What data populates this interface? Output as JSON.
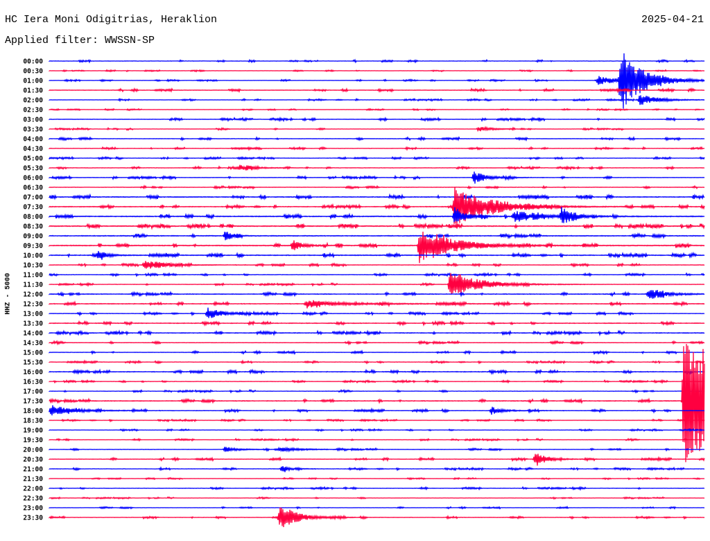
{
  "header": {
    "station": "HC Iera Moni Odigitrias, Heraklion",
    "filter": "Applied filter: WWSSN-SP",
    "date": "2025-04-21"
  },
  "chart_data": {
    "type": "helicorder",
    "ylabel": "HHZ - 5000",
    "minutes_per_row": 30,
    "colors": [
      "#0000ff",
      "#ff0040"
    ],
    "rows": [
      "00:00",
      "00:30",
      "01:00",
      "01:30",
      "02:00",
      "02:30",
      "03:00",
      "03:30",
      "04:00",
      "04:30",
      "05:00",
      "05:30",
      "06:00",
      "06:30",
      "07:00",
      "07:30",
      "08:00",
      "08:30",
      "09:00",
      "09:30",
      "10:00",
      "10:30",
      "11:00",
      "11:30",
      "12:00",
      "12:30",
      "13:00",
      "13:30",
      "14:00",
      "14:30",
      "15:00",
      "15:30",
      "16:00",
      "16:30",
      "17:00",
      "17:30",
      "18:00",
      "18:30",
      "19:00",
      "19:30",
      "20:00",
      "20:30",
      "21:00",
      "21:30",
      "22:00",
      "22:30",
      "23:00",
      "23:30"
    ],
    "noise_level": [
      0.08,
      0.06,
      0.07,
      0.1,
      0.07,
      0.06,
      0.1,
      0.07,
      0.1,
      0.08,
      0.08,
      0.09,
      0.1,
      0.09,
      0.14,
      0.12,
      0.16,
      0.16,
      0.14,
      0.16,
      0.14,
      0.1,
      0.09,
      0.08,
      0.12,
      0.12,
      0.1,
      0.12,
      0.12,
      0.1,
      0.1,
      0.08,
      0.12,
      0.08,
      0.08,
      0.12,
      0.1,
      0.07,
      0.07,
      0.07,
      0.08,
      0.1,
      0.08,
      0.06,
      0.08,
      0.06,
      0.07,
      0.08
    ],
    "events": [
      {
        "row": "01:00",
        "minute": 25.1,
        "amplitude": 0.5,
        "duration": 0.6
      },
      {
        "row": "01:00",
        "minute": 26.1,
        "amplitude": 3.2,
        "duration": 1.0
      },
      {
        "row": "02:00",
        "minute": 27.0,
        "amplitude": 0.6,
        "duration": 0.8
      },
      {
        "row": "03:30",
        "minute": 19.6,
        "amplitude": 0.3,
        "duration": 0.5
      },
      {
        "row": "05:30",
        "minute": 8.7,
        "amplitude": 0.3,
        "duration": 0.6
      },
      {
        "row": "06:00",
        "minute": 19.4,
        "amplitude": 0.7,
        "duration": 0.5
      },
      {
        "row": "07:30",
        "minute": 18.5,
        "amplitude": 2.1,
        "duration": 1.5
      },
      {
        "row": "08:00",
        "minute": 18.5,
        "amplitude": 1.0,
        "duration": 0.5
      },
      {
        "row": "08:00",
        "minute": 21.2,
        "amplitude": 0.4,
        "duration": 1.5
      },
      {
        "row": "08:00",
        "minute": 23.4,
        "amplitude": 0.9,
        "duration": 0.5
      },
      {
        "row": "09:00",
        "minute": 8.0,
        "amplitude": 0.6,
        "duration": 0.3
      },
      {
        "row": "09:30",
        "minute": 11.1,
        "amplitude": 0.6,
        "duration": 0.4
      },
      {
        "row": "09:30",
        "minute": 16.9,
        "amplitude": 1.8,
        "duration": 1.5
      },
      {
        "row": "10:00",
        "minute": 2.2,
        "amplitude": 0.5,
        "duration": 0.4
      },
      {
        "row": "10:30",
        "minute": 4.3,
        "amplitude": 0.5,
        "duration": 0.8
      },
      {
        "row": "11:30",
        "minute": 18.3,
        "amplitude": 1.5,
        "duration": 1.2
      },
      {
        "row": "12:00",
        "minute": 27.4,
        "amplitude": 0.5,
        "duration": 0.8
      },
      {
        "row": "12:30",
        "minute": 11.7,
        "amplitude": 0.3,
        "duration": 2.0
      },
      {
        "row": "13:00",
        "minute": 7.2,
        "amplitude": 0.6,
        "duration": 0.7
      },
      {
        "row": "17:30",
        "minute": 29.0,
        "amplitude": 7.2,
        "duration": 3.0
      },
      {
        "row": "18:00",
        "minute": 0.0,
        "amplitude": 0.6,
        "duration": 1.0
      },
      {
        "row": "18:00",
        "minute": 20.2,
        "amplitude": 0.4,
        "duration": 0.5
      },
      {
        "row": "20:00",
        "minute": 8.0,
        "amplitude": 0.3,
        "duration": 0.5
      },
      {
        "row": "20:00",
        "minute": 10.5,
        "amplitude": 0.2,
        "duration": 1.0
      },
      {
        "row": "20:30",
        "minute": 22.2,
        "amplitude": 0.8,
        "duration": 0.5
      },
      {
        "row": "21:00",
        "minute": 10.6,
        "amplitude": 0.3,
        "duration": 0.4
      },
      {
        "row": "23:30",
        "minute": 10.5,
        "amplitude": 1.2,
        "duration": 0.8
      }
    ]
  }
}
